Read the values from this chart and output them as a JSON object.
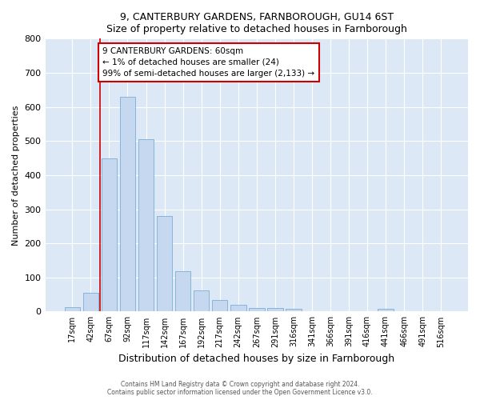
{
  "title": "9, CANTERBURY GARDENS, FARNBOROUGH, GU14 6ST",
  "subtitle": "Size of property relative to detached houses in Farnborough",
  "xlabel": "Distribution of detached houses by size in Farnborough",
  "ylabel": "Number of detached properties",
  "bar_color": "#c5d8ef",
  "bar_edge_color": "#7aadd4",
  "categories": [
    "17sqm",
    "42sqm",
    "67sqm",
    "92sqm",
    "117sqm",
    "142sqm",
    "167sqm",
    "192sqm",
    "217sqm",
    "242sqm",
    "267sqm",
    "291sqm",
    "316sqm",
    "341sqm",
    "366sqm",
    "391sqm",
    "416sqm",
    "441sqm",
    "466sqm",
    "491sqm",
    "516sqm"
  ],
  "values": [
    12,
    55,
    450,
    630,
    505,
    280,
    118,
    63,
    35,
    20,
    10,
    10,
    8,
    0,
    0,
    0,
    0,
    8,
    0,
    0,
    0
  ],
  "ylim": [
    0,
    800
  ],
  "yticks": [
    0,
    100,
    200,
    300,
    400,
    500,
    600,
    700,
    800
  ],
  "vline_color": "#cc0000",
  "annotation_text": "9 CANTERBURY GARDENS: 60sqm\n← 1% of detached houses are smaller (24)\n99% of semi-detached houses are larger (2,133) →",
  "annotation_box_color": "#ffffff",
  "annotation_box_edge": "#cc0000",
  "footer1": "Contains HM Land Registry data © Crown copyright and database right 2024.",
  "footer2": "Contains public sector information licensed under the Open Government Licence v3.0.",
  "plot_bg_color": "#dce8f5"
}
